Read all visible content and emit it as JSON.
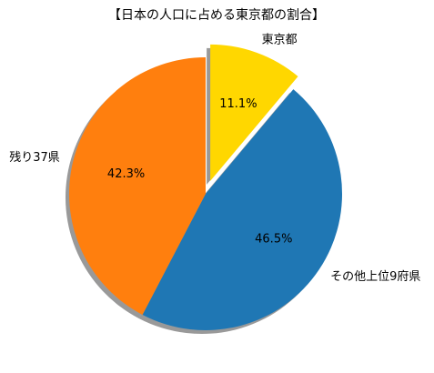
{
  "chart_data": {
    "type": "pie",
    "title": "【日本の人口に占める東京都の割合】",
    "categories": [
      "東京都",
      "その他上位9府県",
      "残り37県"
    ],
    "values": [
      11.1,
      46.5,
      42.3
    ],
    "value_labels": [
      "11.1%",
      "46.5%",
      "42.3%"
    ],
    "colors": [
      "#ffd700",
      "#1f77b4",
      "#ff7f0e"
    ],
    "explode": [
      0.1,
      0,
      0
    ],
    "shadow": true,
    "start_angle": 90,
    "direction": "clockwise"
  }
}
